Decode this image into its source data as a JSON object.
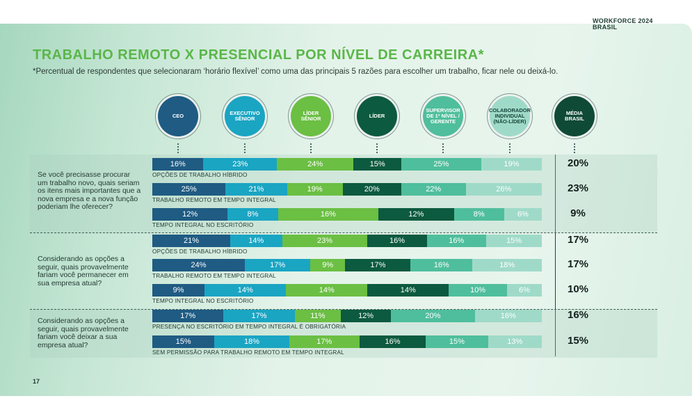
{
  "brand": {
    "line1": "WORKFORCE 2024",
    "line2": "BRASIL"
  },
  "header": {
    "title": "TRABALHO REMOTO X PRESENCIAL POR NÍVEL DE CARREIRA*",
    "subtitle": "*Percentual de respondentes que selecionaram ‘horário flexível’ como uma das principais 5 razões para escolher um trabalho, ficar nele ou deixá-lo."
  },
  "page_number": "17",
  "colors": {
    "ceo": "#1f5b83",
    "executivo_senior": "#1aa5c3",
    "lider_senior": "#6bbf43",
    "lider": "#0c5a3f",
    "supervisor": "#4fbe9c",
    "colaborador": "#9fdac8",
    "media": "#0f4a36"
  },
  "chart_data": {
    "type": "bar",
    "stacked": true,
    "orientation": "horizontal",
    "categories": [
      "CEO",
      "EXECUTIVO SÊNIOR",
      "LÍDER SÊNIOR",
      "LÍDER",
      "SUPERVISOR DE 1º NÍVEL / GERENTE",
      "COLABORADOR INDIVIDUAL (NÃO-LÍDER)",
      "MÉDIA BRASIL"
    ],
    "category_lines": [
      [
        "CEO"
      ],
      [
        "EXECUTIVO",
        "SÊNIOR"
      ],
      [
        "LÍDER",
        "SÊNIOR"
      ],
      [
        "LÍDER"
      ],
      [
        "SUPERVISOR",
        "DE 1º NÍVEL /",
        "GERENTE"
      ],
      [
        "COLABORADOR",
        "INDIVIDUAL",
        "(NÃO-LÍDER)"
      ],
      [
        "MÉDIA",
        "BRASIL"
      ]
    ],
    "groups": [
      {
        "question": "Se você precisasse procurar um trabalho novo, quais seriam os itens mais importantes que a nova empresa e a nova função poderiam lhe oferecer?",
        "rows": [
          {
            "label": "OPÇÕES DE TRABALHO HÍBRIDO",
            "values": [
              16,
              23,
              24,
              15,
              25,
              19
            ],
            "average": 20
          },
          {
            "label": "TRABALHO REMOTO EM TEMPO INTEGRAL",
            "values": [
              25,
              21,
              19,
              20,
              22,
              26
            ],
            "average": 23
          },
          {
            "label": "TEMPO INTEGRAL NO ESCRITÓRIO",
            "values": [
              12,
              8,
              16,
              12,
              8,
              6
            ],
            "average": 9
          }
        ]
      },
      {
        "question": "Considerando as opções a seguir, quais provavelmente fariam você permanecer em sua empresa atual?",
        "rows": [
          {
            "label": "OPÇÕES DE TRABALHO HÍBRIDO",
            "values": [
              21,
              14,
              23,
              16,
              16,
              15
            ],
            "average": 17
          },
          {
            "label": "TRABALHO REMOTO EM TEMPO INTEGRAL",
            "values": [
              24,
              17,
              9,
              17,
              16,
              18
            ],
            "average": 17
          },
          {
            "label": "TEMPO INTEGRAL NO ESCRITÓRIO",
            "values": [
              9,
              14,
              14,
              14,
              10,
              6
            ],
            "average": 10
          }
        ]
      },
      {
        "question": "Considerando as opções a seguir, quais provavelmente fariam você deixar a sua empresa atual?",
        "rows": [
          {
            "label": "PRESENÇA NO ESCRITÓRIO EM TEMPO INTEGRAL É OBRIGATÓRIA",
            "values": [
              17,
              17,
              11,
              12,
              20,
              16
            ],
            "average": 16
          },
          {
            "label": "SEM PERMISSÃO PARA TRABALHO REMOTO EM TEMPO INTEGRAL",
            "values": [
              15,
              18,
              17,
              16,
              15,
              13
            ],
            "average": 15
          }
        ]
      }
    ],
    "value_suffix": "%",
    "legend": "none",
    "grid": false
  }
}
